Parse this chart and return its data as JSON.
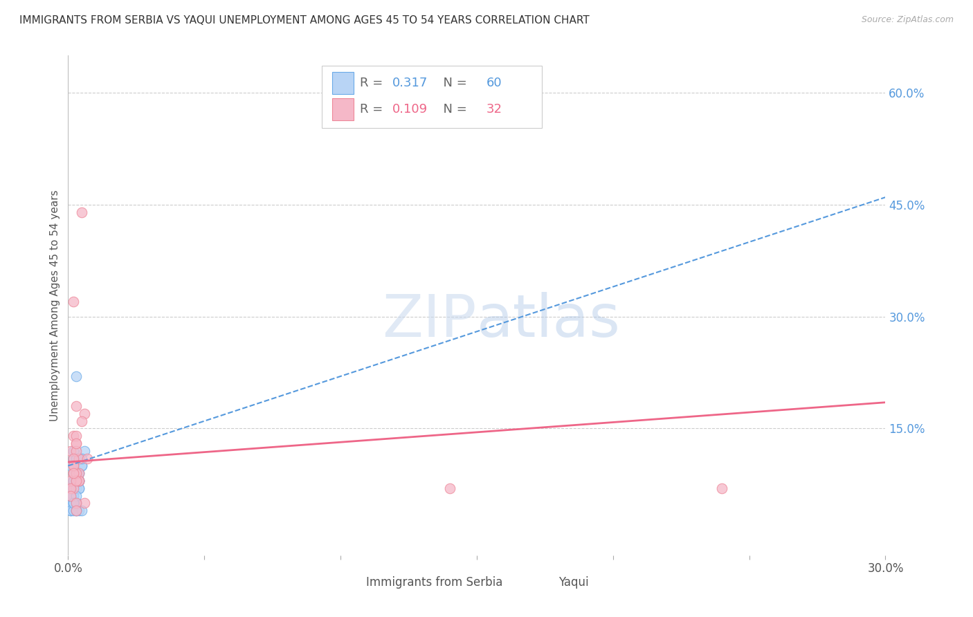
{
  "title": "IMMIGRANTS FROM SERBIA VS YAQUI UNEMPLOYMENT AMONG AGES 45 TO 54 YEARS CORRELATION CHART",
  "source": "Source: ZipAtlas.com",
  "ylabel": "Unemployment Among Ages 45 to 54 years",
  "xlim": [
    0.0,
    0.3
  ],
  "ylim": [
    -0.02,
    0.65
  ],
  "serbia_R": 0.317,
  "serbia_N": 60,
  "yaqui_R": 0.109,
  "yaqui_N": 32,
  "serbia_color": "#b8d4f5",
  "serbia_edge_color": "#6aaae8",
  "serbia_line_color": "#5599dd",
  "yaqui_color": "#f5b8c8",
  "yaqui_edge_color": "#ee8899",
  "yaqui_line_color": "#ee6688",
  "serbia_x": [
    0.001,
    0.002,
    0.001,
    0.003,
    0.002,
    0.001,
    0.002,
    0.003,
    0.001,
    0.002,
    0.001,
    0.002,
    0.003,
    0.001,
    0.002,
    0.001,
    0.003,
    0.002,
    0.001,
    0.002,
    0.003,
    0.001,
    0.002,
    0.003,
    0.001,
    0.002,
    0.003,
    0.001,
    0.002,
    0.001,
    0.004,
    0.003,
    0.002,
    0.003,
    0.004,
    0.001,
    0.003,
    0.002,
    0.003,
    0.004,
    0.005,
    0.003,
    0.004,
    0.002,
    0.004,
    0.001,
    0.003,
    0.004,
    0.003,
    0.002,
    0.006,
    0.005,
    0.004,
    0.003,
    0.004,
    0.002,
    0.005,
    0.004,
    0.003,
    0.005
  ],
  "serbia_y": [
    0.06,
    0.08,
    0.07,
    0.09,
    0.05,
    0.06,
    0.1,
    0.07,
    0.05,
    0.11,
    0.07,
    0.05,
    0.09,
    0.06,
    0.08,
    0.05,
    0.07,
    0.06,
    0.04,
    0.08,
    0.22,
    0.05,
    0.07,
    0.09,
    0.06,
    0.08,
    0.04,
    0.1,
    0.12,
    0.06,
    0.04,
    0.07,
    0.05,
    0.08,
    0.11,
    0.04,
    0.09,
    0.06,
    0.07,
    0.08,
    0.1,
    0.05,
    0.09,
    0.04,
    0.07,
    0.06,
    0.11,
    0.08,
    0.05,
    0.09,
    0.12,
    0.04,
    0.07,
    0.06,
    0.09,
    0.05,
    0.1,
    0.08,
    0.04,
    0.11
  ],
  "serbia_trend_x0": 0.0,
  "serbia_trend_y0": 0.1,
  "serbia_trend_x1": 0.3,
  "serbia_trend_y1": 0.46,
  "yaqui_trend_x0": 0.0,
  "yaqui_trend_y0": 0.105,
  "yaqui_trend_x1": 0.3,
  "yaqui_trend_y1": 0.185,
  "yaqui_x": [
    0.001,
    0.003,
    0.002,
    0.004,
    0.002,
    0.005,
    0.003,
    0.002,
    0.004,
    0.006,
    0.003,
    0.002,
    0.005,
    0.004,
    0.003,
    0.007,
    0.004,
    0.002,
    0.006,
    0.003,
    0.001,
    0.002,
    0.003,
    0.001,
    0.002,
    0.003,
    0.001,
    0.002,
    0.14,
    0.24,
    0.003,
    0.003
  ],
  "yaqui_y": [
    0.12,
    0.13,
    0.32,
    0.11,
    0.09,
    0.44,
    0.18,
    0.14,
    0.08,
    0.17,
    0.12,
    0.07,
    0.16,
    0.09,
    0.14,
    0.11,
    0.08,
    0.1,
    0.05,
    0.13,
    0.08,
    0.11,
    0.09,
    0.07,
    0.1,
    0.08,
    0.06,
    0.09,
    0.07,
    0.07,
    0.05,
    0.04
  ],
  "ytick_right": [
    0.15,
    0.3,
    0.45,
    0.6
  ],
  "ytick_right_labels": [
    "15.0%",
    "30.0%",
    "45.0%",
    "60.0%"
  ],
  "watermark_zip": "ZIP",
  "watermark_atlas": "atlas",
  "background_color": "#ffffff",
  "grid_color": "#cccccc"
}
